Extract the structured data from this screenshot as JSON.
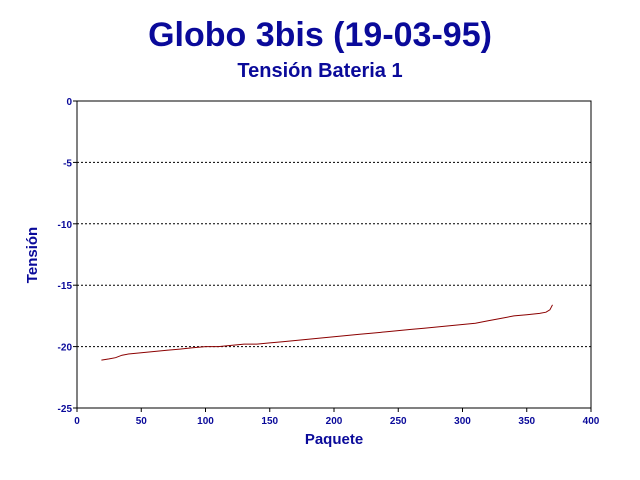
{
  "chart_data": {
    "type": "line",
    "title": "Globo 3bis (19-03-95)",
    "subtitle": "Tensión Bateria 1",
    "xlabel": "Paquete",
    "ylabel": "Tensión",
    "xlim": [
      0,
      400
    ],
    "ylim": [
      -25,
      0
    ],
    "xticks": [
      0,
      50,
      100,
      150,
      200,
      250,
      300,
      350,
      400
    ],
    "yticks": [
      0,
      -5,
      -10,
      -15,
      -20,
      -25
    ],
    "grid": "horizontal dotted",
    "line_color": "#8b0000",
    "series": [
      {
        "x": [
          19,
          25,
          30,
          35,
          40,
          50,
          60,
          70,
          80,
          90,
          100,
          110,
          120,
          130,
          140,
          150,
          160,
          170,
          180,
          190,
          200,
          210,
          220,
          230,
          240,
          250,
          260,
          270,
          280,
          290,
          300,
          310,
          320,
          330,
          340,
          350,
          360,
          365,
          368,
          370
        ],
        "y": [
          -21.1,
          -21.0,
          -20.9,
          -20.7,
          -20.6,
          -20.5,
          -20.4,
          -20.3,
          -20.2,
          -20.1,
          -20.0,
          -20.0,
          -19.9,
          -19.8,
          -19.8,
          -19.7,
          -19.6,
          -19.5,
          -19.4,
          -19.3,
          -19.2,
          -19.1,
          -19.0,
          -18.9,
          -18.8,
          -18.7,
          -18.6,
          -18.5,
          -18.4,
          -18.3,
          -18.2,
          -18.1,
          -17.9,
          -17.7,
          -17.5,
          -17.4,
          -17.3,
          -17.2,
          -17.0,
          -16.6
        ]
      }
    ]
  }
}
